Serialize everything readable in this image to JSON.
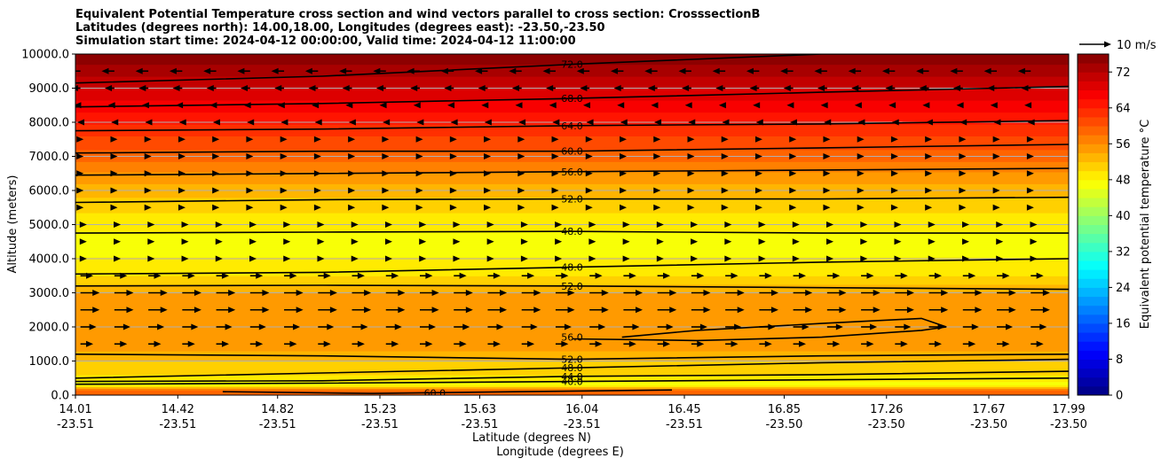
{
  "chart_data": {
    "type": "heatmap",
    "title_lines": [
      "Equivalent Potential Temperature cross section and wind vectors parallel to cross section: CrosssectionB",
      "Latitudes (degrees north): 14.00,18.00, Longitudes (degrees east): -23.50,-23.50",
      "Simulation start time: 2024-04-12 00:00:00, Valid time: 2024-04-12 11:00:00"
    ],
    "ylabel": "Altitude (meters)",
    "xlabel_line1": "Latitude (degrees N)",
    "xlabel_line2": "Longitude (degrees E)",
    "ylim": [
      0,
      10000
    ],
    "yticks": [
      "0.0",
      "1000.0",
      "2000.0",
      "3000.0",
      "4000.0",
      "5000.0",
      "6000.0",
      "7000.0",
      "8000.0",
      "9000.0",
      "10000.0"
    ],
    "ytick_values": [
      0,
      1000,
      2000,
      3000,
      4000,
      5000,
      6000,
      7000,
      8000,
      9000,
      10000
    ],
    "xlim": [
      14.01,
      17.99
    ],
    "xticks": [
      {
        "lat": "14.01",
        "lon": "-23.51",
        "v": 14.01
      },
      {
        "lat": "14.42",
        "lon": "-23.51",
        "v": 14.42
      },
      {
        "lat": "14.82",
        "lon": "-23.51",
        "v": 14.82
      },
      {
        "lat": "15.23",
        "lon": "-23.51",
        "v": 15.23
      },
      {
        "lat": "15.63",
        "lon": "-23.51",
        "v": 15.63
      },
      {
        "lat": "16.04",
        "lon": "-23.51",
        "v": 16.04
      },
      {
        "lat": "16.45",
        "lon": "-23.51",
        "v": 16.45
      },
      {
        "lat": "16.85",
        "lon": "-23.50",
        "v": 16.85
      },
      {
        "lat": "17.26",
        "lon": "-23.50",
        "v": 17.26
      },
      {
        "lat": "17.67",
        "lon": "-23.50",
        "v": 17.67
      },
      {
        "lat": "17.99",
        "lon": "-23.50",
        "v": 17.99
      }
    ],
    "grid": "horizontal",
    "colorbar": {
      "label": "Equivalent potential temperature °C",
      "range": [
        0,
        76
      ],
      "ticks": [
        "0",
        "8",
        "16",
        "24",
        "32",
        "40",
        "48",
        "56",
        "64",
        "72"
      ],
      "tick_values": [
        0,
        8,
        16,
        24,
        32,
        40,
        48,
        56,
        64,
        72
      ],
      "colormap": "jet"
    },
    "profile_note": "equivalent potential temperature vs altitude (°C), surface to top",
    "theta_profile": [
      {
        "alt": 0,
        "theta": 60
      },
      {
        "alt": 150,
        "theta": 58
      },
      {
        "alt": 300,
        "theta": 47
      },
      {
        "alt": 600,
        "theta": 50
      },
      {
        "alt": 1000,
        "theta": 52
      },
      {
        "alt": 1300,
        "theta": 54
      },
      {
        "alt": 2000,
        "theta": 56
      },
      {
        "alt": 3000,
        "theta": 54
      },
      {
        "alt": 3600,
        "theta": 49
      },
      {
        "alt": 4500,
        "theta": 47
      },
      {
        "alt": 5500,
        "theta": 50.5
      },
      {
        "alt": 6400,
        "theta": 55
      },
      {
        "alt": 7000,
        "theta": 59
      },
      {
        "alt": 7800,
        "theta": 63
      },
      {
        "alt": 8500,
        "theta": 67
      },
      {
        "alt": 9200,
        "theta": 71
      },
      {
        "alt": 10000,
        "theta": 76
      }
    ],
    "contours": [
      {
        "label": "72.0",
        "x": [
          14.01,
          15.0,
          16.0,
          17.0,
          17.99
        ],
        "alt": [
          9150,
          9350,
          9700,
          10000,
          10000
        ],
        "label_x": 16.0
      },
      {
        "label": "68.0",
        "x": [
          14.01,
          15.0,
          16.0,
          17.0,
          17.99
        ],
        "alt": [
          8450,
          8550,
          8700,
          8880,
          9050
        ],
        "label_x": 16.0
      },
      {
        "label": "64.0",
        "x": [
          14.01,
          15.0,
          16.0,
          17.0,
          17.99
        ],
        "alt": [
          7750,
          7800,
          7900,
          7950,
          8050
        ],
        "label_x": 16.0
      },
      {
        "label": "60.0",
        "x": [
          14.01,
          15.0,
          16.0,
          17.0,
          17.99
        ],
        "alt": [
          7100,
          7150,
          7150,
          7250,
          7350
        ],
        "label_x": 16.0
      },
      {
        "label": "56.0",
        "x": [
          14.01,
          15.0,
          16.0,
          17.0,
          17.99
        ],
        "alt": [
          6450,
          6500,
          6550,
          6600,
          6650
        ],
        "label_x": 16.0
      },
      {
        "label": "52.0",
        "x": [
          14.01,
          15.0,
          16.0,
          17.0,
          17.99
        ],
        "alt": [
          5650,
          5730,
          5750,
          5750,
          5800
        ],
        "label_x": 16.0
      },
      {
        "label": "48.0",
        "x": [
          14.01,
          15.0,
          16.0,
          17.0,
          17.99
        ],
        "alt": [
          4750,
          4780,
          4800,
          4750,
          4750
        ],
        "label_x": 16.0
      },
      {
        "label": "48.0",
        "x": [
          14.01,
          15.0,
          16.0,
          17.0,
          17.99
        ],
        "alt": [
          3550,
          3600,
          3750,
          3900,
          4000
        ],
        "label_x": 16.0
      },
      {
        "label": "52.0",
        "x": [
          14.01,
          15.0,
          16.0,
          17.0,
          17.99
        ],
        "alt": [
          3200,
          3220,
          3200,
          3150,
          3100
        ],
        "label_x": 16.0
      },
      {
        "label": "56.0",
        "x": [
          16.2,
          16.5,
          17.0,
          17.4,
          17.5,
          17.4,
          17.0,
          16.5,
          16.0
        ],
        "alt": [
          1700,
          1900,
          2100,
          2250,
          2000,
          1900,
          1700,
          1600,
          1650
        ],
        "label_x": 16.0
      },
      {
        "label": "52.0",
        "x": [
          14.01,
          15.0,
          16.0,
          17.0,
          17.99
        ],
        "alt": [
          1200,
          1150,
          1050,
          1150,
          1200
        ],
        "label_x": 16.0
      },
      {
        "label": "48.0",
        "x": [
          14.01,
          15.0,
          16.0,
          17.0,
          17.99
        ],
        "alt": [
          500,
          650,
          800,
          950,
          1050
        ],
        "label_x": 16.0
      },
      {
        "label": "44.0",
        "x": [
          14.01,
          15.0,
          16.0,
          17.0,
          17.99
        ],
        "alt": [
          400,
          420,
          550,
          600,
          700
        ],
        "label_x": 16.0
      },
      {
        "label": "40.0",
        "x": [
          14.01,
          15.0,
          16.0,
          17.0,
          17.99
        ],
        "alt": [
          320,
          350,
          400,
          450,
          500
        ],
        "label_x": 16.0
      },
      {
        "label": "60.0",
        "x": [
          14.6,
          15.2,
          15.8,
          16.4
        ],
        "alt": [
          100,
          50,
          100,
          150
        ],
        "label_x": 15.45
      }
    ],
    "wind_reference": {
      "label": "10 m/s",
      "speed": 10
    },
    "wind_profile_note": "wind component parallel to cross section (m/s), positive = northward",
    "wind_profile": [
      {
        "alt": 1500,
        "u": 4
      },
      {
        "alt": 2000,
        "u": 5
      },
      {
        "alt": 2500,
        "u": 6
      },
      {
        "alt": 3000,
        "u": 6
      },
      {
        "alt": 3500,
        "u": 4
      },
      {
        "alt": 4000,
        "u": 2
      },
      {
        "alt": 4500,
        "u": 2
      },
      {
        "alt": 5000,
        "u": 2
      },
      {
        "alt": 5500,
        "u": 1
      },
      {
        "alt": 6000,
        "u": 1
      },
      {
        "alt": 6500,
        "u": 1
      },
      {
        "alt": 7000,
        "u": 1
      },
      {
        "alt": 7500,
        "u": 1
      },
      {
        "alt": 8000,
        "u": -1
      },
      {
        "alt": 8500,
        "u": -2
      },
      {
        "alt": 9000,
        "u": -3
      },
      {
        "alt": 9500,
        "u": -4
      }
    ]
  }
}
